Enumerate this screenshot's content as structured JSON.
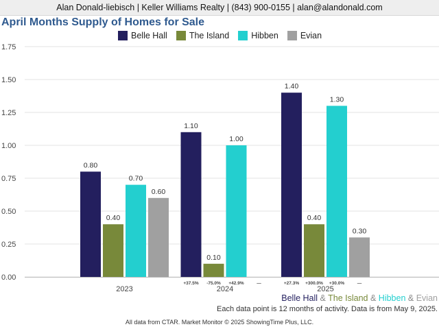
{
  "header": {
    "contact": "Alan Donald-liebisch | Keller Williams Realty | (843) 900-0155 | alan@alandonald.com"
  },
  "chart_title": "April Months Supply of Homes for Sale",
  "legend_markets": [
    {
      "name": "Belle Hall",
      "color": "#231f5e"
    },
    {
      "name": "The Island",
      "color": "#78893a"
    },
    {
      "name": "Hibben",
      "color": "#23cfcf"
    },
    {
      "name": "Evian",
      "color": "#a0a0a0"
    }
  ],
  "amp": "&",
  "note": "Each data point is 12 months of activity. Data is from May 9, 2025.",
  "footer": "All data from CTAR. Market Monitor © 2025 ShowingTime Plus, LLC.",
  "chart_data": {
    "type": "bar",
    "categories": [
      "2023",
      "2024",
      "2025"
    ],
    "y_ticks": [
      "0.00",
      "0.25",
      "0.50",
      "0.75",
      "1.00",
      "1.25",
      "1.50",
      "1.75"
    ],
    "ylim": [
      0,
      1.75
    ],
    "grid": true,
    "legend_position": "top",
    "series": [
      {
        "name": "Belle Hall",
        "color": "#231f5e",
        "values": [
          0.8,
          1.1,
          1.4
        ],
        "labels": [
          "0.80",
          "1.10",
          "1.40"
        ],
        "changes": [
          "",
          "+37.5%",
          "+27.3%"
        ]
      },
      {
        "name": "The Island",
        "color": "#78893a",
        "values": [
          0.4,
          0.1,
          0.4
        ],
        "labels": [
          "0.40",
          "0.10",
          "0.40"
        ],
        "changes": [
          "",
          "-75.0%",
          "+300.0%"
        ]
      },
      {
        "name": "Hibben",
        "color": "#23cfcf",
        "values": [
          0.7,
          1.0,
          1.3
        ],
        "labels": [
          "0.70",
          "1.00",
          "1.30"
        ],
        "changes": [
          "",
          "+42.9%",
          "+30.0%"
        ]
      },
      {
        "name": "Evian",
        "color": "#a0a0a0",
        "values": [
          0.6,
          null,
          0.3
        ],
        "labels": [
          "0.60",
          "",
          "0.30"
        ],
        "changes": [
          "",
          "—",
          "—"
        ]
      }
    ]
  }
}
